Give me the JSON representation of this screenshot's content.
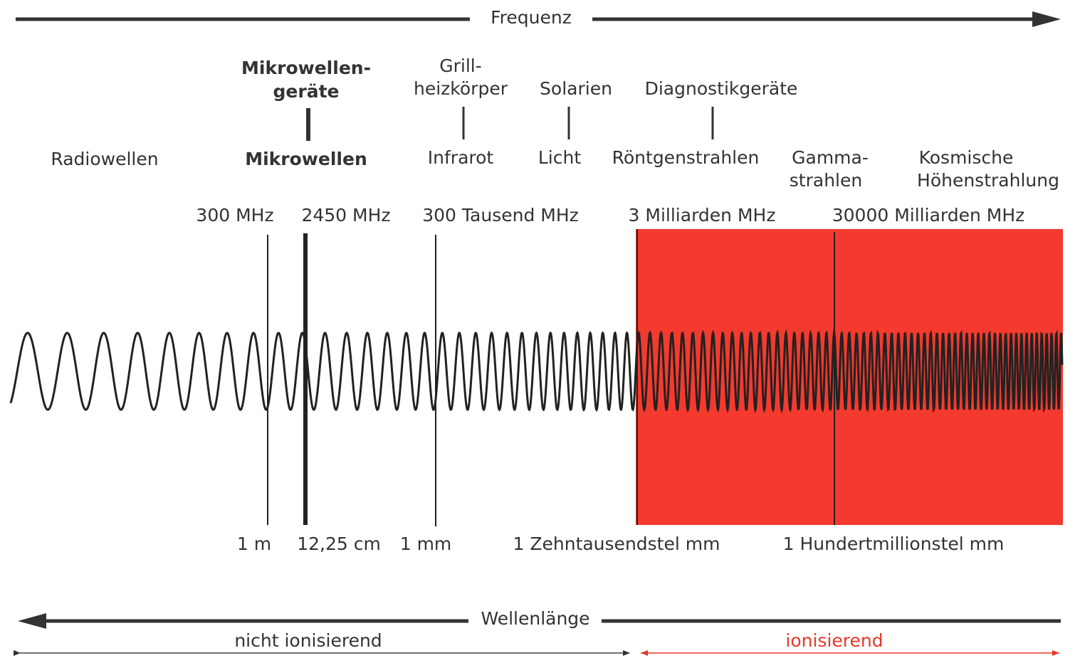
{
  "frequency_axis": {
    "label": "Frequenz"
  },
  "devices": [
    {
      "lines": [
        "Mikrowellen-",
        "geräte"
      ]
    },
    {
      "lines": [
        "Grill-",
        "heizkörper"
      ]
    },
    {
      "lines": [
        "Solarien"
      ]
    },
    {
      "lines": [
        "Diagnostikgeräte"
      ]
    }
  ],
  "bands": [
    {
      "lines": [
        "Radiowellen"
      ]
    },
    {
      "lines": [
        "Mikrowellen"
      ]
    },
    {
      "lines": [
        "Infrarot"
      ]
    },
    {
      "lines": [
        "Licht"
      ]
    },
    {
      "lines": [
        "Röntgenstrahlen"
      ]
    },
    {
      "lines": [
        "Gamma-",
        "strahlen"
      ]
    },
    {
      "lines": [
        "Kosmische",
        "Höhenstrahlung"
      ]
    }
  ],
  "frequencies": [
    "300 MHz",
    "2450 MHz",
    "300 Tausend MHz",
    "3 Milliarden MHz",
    "30000 Milliarden MHz"
  ],
  "wavelengths": [
    "1 m",
    "12,25 cm",
    "1 mm",
    "1 Zehntausendstel mm",
    "1 Hundertmillionstel mm"
  ],
  "wavelength_axis": {
    "label": "Wellenlänge"
  },
  "regions": [
    "nicht ionisierend",
    "ionisierend"
  ]
}
